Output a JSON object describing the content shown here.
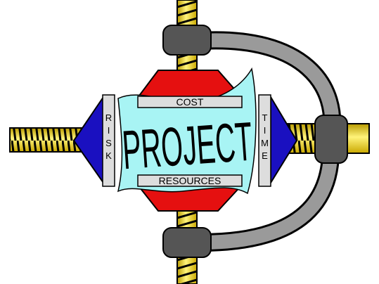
{
  "labels": {
    "cost": "COST",
    "project": "PROJECT",
    "risk": "RISK",
    "time": "TIME",
    "resources": "RESOURCES"
  }
}
